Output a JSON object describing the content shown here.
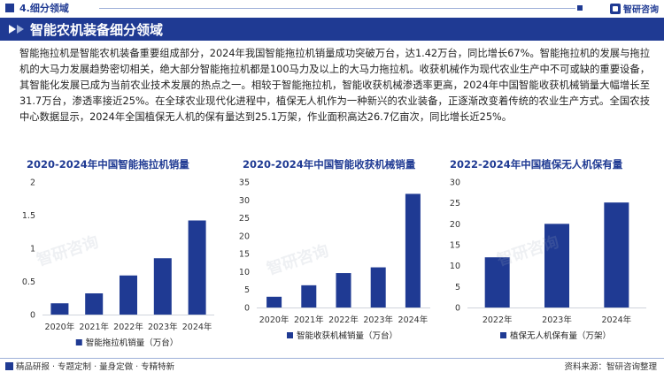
{
  "header": {
    "section": "4.细分领域",
    "logo_text": "智研咨询",
    "banner_title": "智能农机装备细分领域"
  },
  "body_text": "智能拖拉机是智能农机装备重要组成部分，2024年我国智能拖拉机销量成功突破万台，达1.42万台，同比增长67%。智能拖拉机的发展与拖拉机的大马力发展趋势密切相关，绝大部分智能拖拉机都是100马力及以上的大马力拖拉机。收获机械作为现代农业生产中不可或缺的重要设备，其智能化发展已成为当前农业技术发展的热点之一。相较于智能拖拉机，智能收获机械渗透率更高，2024年中国智能收获机械销量大幅增长至31.7万台，渗透率接近25%。在全球农业现代化进程中，植保无人机作为一种新兴的农业装备，正逐渐改变着传统的农业生产方式。全国农技中心数据显示，2024年全国植保无人机的保有量达到25.1万架，作业面积高达26.7亿亩次，同比增长近25%。",
  "footer": {
    "left": "精品研报 · 专题定制 · 量身定做 · 专精特新",
    "right": "资料来源：智研咨询整理"
  },
  "colors": {
    "bar": "#1f3a93",
    "accent": "#1f3a93"
  },
  "chart_data": [
    {
      "type": "bar",
      "title": "2020-2024年中国智能拖拉机销量",
      "categories": [
        "2020年",
        "2021年",
        "2022年",
        "2023年",
        "2024年"
      ],
      "series": [
        {
          "name": "智能拖拉机销量（万台）",
          "values": [
            0.17,
            0.32,
            0.59,
            0.85,
            1.42
          ]
        }
      ],
      "ylim": [
        0,
        2
      ],
      "yticks": [
        "0",
        "0.5",
        "1",
        "1.5",
        "2"
      ],
      "ytick_values": [
        0,
        0.5,
        1,
        1.5,
        2
      ],
      "legend": "bottom"
    },
    {
      "type": "bar",
      "title": "2020-2024年中国智能收获机械销量",
      "categories": [
        "2020年",
        "2021年",
        "2022年",
        "2023年",
        "2024年"
      ],
      "series": [
        {
          "name": "智能收获机械销量（万台）",
          "values": [
            3,
            6.2,
            9.6,
            11.2,
            31.7
          ]
        }
      ],
      "ylim": [
        0,
        35
      ],
      "yticks": [
        "0",
        "5",
        "10",
        "15",
        "20",
        "25",
        "30",
        "35"
      ],
      "ytick_values": [
        0,
        5,
        10,
        15,
        20,
        25,
        30,
        35
      ],
      "legend": "bottom"
    },
    {
      "type": "bar",
      "title": "2022-2024年中国植保无人机保有量",
      "categories": [
        "2022年",
        "2023年",
        "2024年"
      ],
      "series": [
        {
          "name": "植保无人机保有量（万架）",
          "values": [
            12,
            20,
            25.1
          ]
        }
      ],
      "ylim": [
        0,
        30
      ],
      "yticks": [
        "0",
        "5",
        "10",
        "15",
        "20",
        "25",
        "30"
      ],
      "ytick_values": [
        0,
        5,
        10,
        15,
        20,
        25,
        30
      ],
      "legend": "bottom"
    }
  ]
}
